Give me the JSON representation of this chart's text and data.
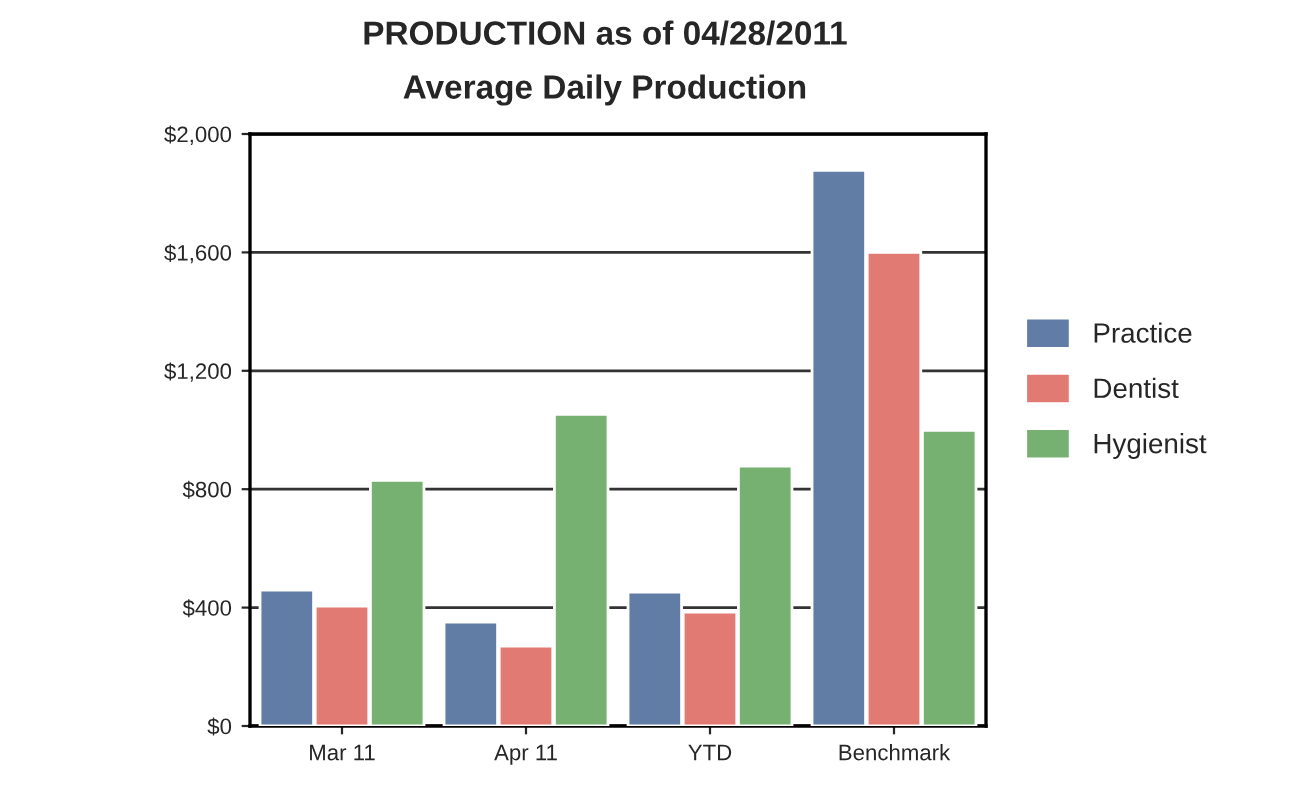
{
  "chart_data": {
    "type": "bar",
    "title": "PRODUCTION as of 04/28/2011",
    "subtitle": "Average Daily Production",
    "categories": [
      "Mar 11",
      "Apr 11",
      "YTD",
      "Benchmark"
    ],
    "series": [
      {
        "name": "Practice",
        "color": "#617da6",
        "values": [
          459,
          351,
          452,
          1877
        ]
      },
      {
        "name": "Dentist",
        "color": "#e07a73",
        "values": [
          405,
          270,
          385,
          1600
        ]
      },
      {
        "name": "Hygienist",
        "color": "#76b172",
        "values": [
          830,
          1053,
          878,
          999
        ]
      }
    ],
    "ylim": [
      0,
      2000
    ],
    "yticks": [
      {
        "value": 0,
        "label": "$0"
      },
      {
        "value": 400,
        "label": "$400"
      },
      {
        "value": 800,
        "label": "$800"
      },
      {
        "value": 1200,
        "label": "$1,200"
      },
      {
        "value": 1600,
        "label": "$1,600"
      },
      {
        "value": 2000,
        "label": "$2,000"
      }
    ],
    "grid": "y",
    "legend": "right"
  }
}
